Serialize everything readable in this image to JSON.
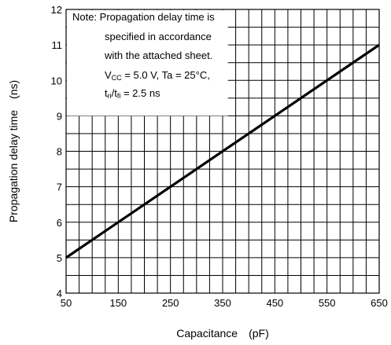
{
  "chart_data": {
    "type": "line",
    "xlabel": "Capacitance (pF)",
    "ylabel": "Propagation delay time (ns)",
    "xlabel_parts": [
      "Capacitance",
      "(pF)"
    ],
    "ylabel_parts": [
      "Propagation delay time",
      "(ns)"
    ],
    "xlim": [
      50,
      650
    ],
    "ylim": [
      4,
      12
    ],
    "x_ticks": [
      50,
      150,
      250,
      350,
      450,
      550,
      650
    ],
    "y_ticks": [
      4,
      5,
      6,
      7,
      8,
      9,
      10,
      11,
      12
    ],
    "x_minor_step": 25,
    "y_minor_step": 0.5,
    "grid": true,
    "series": [
      {
        "x": [
          50,
          650
        ],
        "y": [
          5,
          11
        ],
        "color": "#000000"
      }
    ],
    "note": {
      "line1": "Note: Propagation delay time is",
      "line2": "specified in accordance",
      "line3": "with the attached sheet.",
      "line4_prefix": "V",
      "line4_sub": "CC",
      "line4_rest": " = 5.0 V, Ta = 25°C,",
      "line5_t1": "t",
      "line5_sub1": "ri",
      "line5_slash": "/t",
      "line5_sub2": "fi",
      "line5_rest": " = 2.5 ns",
      "box_x_range": [
        50,
        360
      ],
      "box_y_range": [
        9,
        12
      ]
    }
  }
}
